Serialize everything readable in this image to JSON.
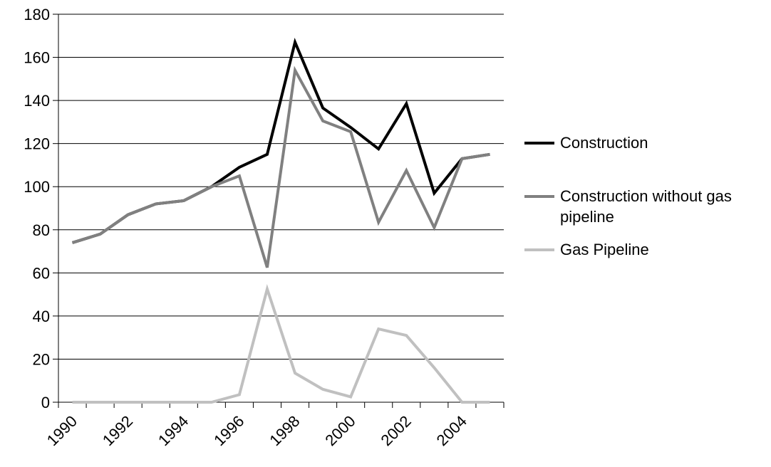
{
  "chart_data": {
    "type": "line",
    "title": "",
    "xlabel": "",
    "ylabel": "",
    "x": [
      1990,
      1991,
      1992,
      1993,
      1994,
      1995,
      1996,
      1997,
      1998,
      1999,
      2000,
      2001,
      2002,
      2003,
      2004,
      2005
    ],
    "x_tick_labels": [
      "1990",
      "1992",
      "1994",
      "1996",
      "1998",
      "2000",
      "2002",
      "2004"
    ],
    "y_ticks": [
      0,
      20,
      40,
      60,
      80,
      100,
      120,
      140,
      160,
      180
    ],
    "ylim": [
      0,
      180
    ],
    "grid": "horizontal",
    "legend_position": "right",
    "series": [
      {
        "name": "Construction",
        "color": "#000000",
        "values": [
          74,
          78,
          87,
          92,
          93.5,
          100,
          109,
          115,
          167,
          136.5,
          127.5,
          117.5,
          138.5,
          97,
          113,
          115
        ]
      },
      {
        "name": "Construction without gas pipeline",
        "color": "#808080",
        "values": [
          74,
          78,
          87,
          92,
          93.5,
          100,
          105,
          62.5,
          154,
          130.5,
          125.5,
          83.5,
          107.5,
          81,
          113,
          115
        ]
      },
      {
        "name": "Gas Pipeline",
        "color": "#c0c0c0",
        "values": [
          0,
          0,
          0,
          0,
          0,
          0,
          3.5,
          52.5,
          13.5,
          6,
          2.5,
          34,
          31,
          16,
          0,
          0
        ]
      }
    ]
  },
  "legend": {
    "items": [
      {
        "label": "Construction",
        "color": "#000000"
      },
      {
        "label": "Construction without gas pipeline",
        "color": "#808080"
      },
      {
        "label": "Gas Pipeline",
        "color": "#c0c0c0"
      }
    ]
  }
}
